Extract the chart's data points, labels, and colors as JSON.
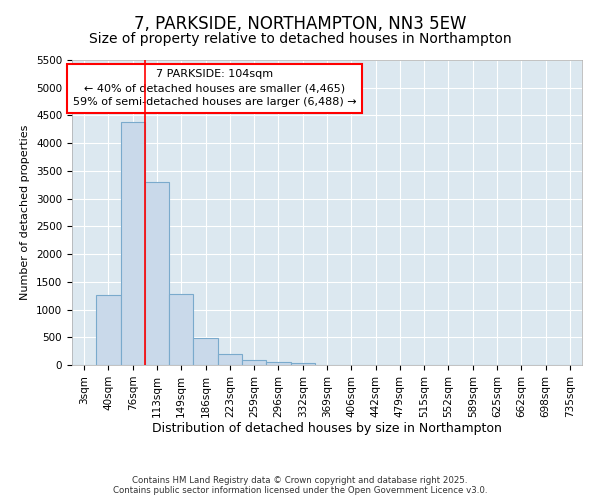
{
  "title": "7, PARKSIDE, NORTHAMPTON, NN3 5EW",
  "subtitle": "Size of property relative to detached houses in Northampton",
  "xlabel": "Distribution of detached houses by size in Northampton",
  "ylabel": "Number of detached properties",
  "categories": [
    "3sqm",
    "40sqm",
    "76sqm",
    "113sqm",
    "149sqm",
    "186sqm",
    "223sqm",
    "259sqm",
    "296sqm",
    "332sqm",
    "369sqm",
    "406sqm",
    "442sqm",
    "479sqm",
    "515sqm",
    "552sqm",
    "589sqm",
    "625sqm",
    "662sqm",
    "698sqm",
    "735sqm"
  ],
  "bar_values": [
    0,
    1270,
    4380,
    3300,
    1280,
    490,
    200,
    90,
    60,
    40,
    0,
    0,
    0,
    0,
    0,
    0,
    0,
    0,
    0,
    0,
    0
  ],
  "bar_color": "#c9d9ea",
  "bar_edge_color": "#7aaacc",
  "ylim": [
    0,
    5500
  ],
  "yticks": [
    0,
    500,
    1000,
    1500,
    2000,
    2500,
    3000,
    3500,
    4000,
    4500,
    5000,
    5500
  ],
  "vline_position": 3,
  "vline_color": "red",
  "annotation_line1": "7 PARKSIDE: 104sqm",
  "annotation_line2": "← 40% of detached houses are smaller (4,465)",
  "annotation_line3": "59% of semi-detached houses are larger (6,488) →",
  "background_color": "#dce8f0",
  "grid_color": "white",
  "footer_line1": "Contains HM Land Registry data © Crown copyright and database right 2025.",
  "footer_line2": "Contains public sector information licensed under the Open Government Licence v3.0.",
  "title_fontsize": 12,
  "subtitle_fontsize": 10,
  "tick_fontsize": 7.5,
  "ylabel_fontsize": 8,
  "xlabel_fontsize": 9
}
